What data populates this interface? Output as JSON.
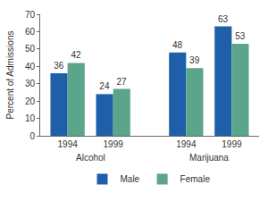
{
  "chart_data": {
    "type": "bar",
    "y_label": "Percent of Admissions",
    "categories": [
      "1994",
      "1999",
      "1994",
      "1999"
    ],
    "groups": [
      "Alcohol",
      "Alcohol",
      "Marijuana",
      "Marijuana"
    ],
    "series": [
      {
        "name": "Male",
        "color": "#1f5faa",
        "values": [
          36,
          24,
          48,
          63
        ]
      },
      {
        "name": "Female",
        "color": "#5ba68a",
        "values": [
          42,
          27,
          39,
          53
        ]
      }
    ],
    "ylim": [
      0,
      70
    ],
    "yticks": [
      0,
      10,
      20,
      30,
      40,
      50,
      60,
      70
    ],
    "grid": false,
    "legend": "bottom",
    "data_labels": true
  }
}
